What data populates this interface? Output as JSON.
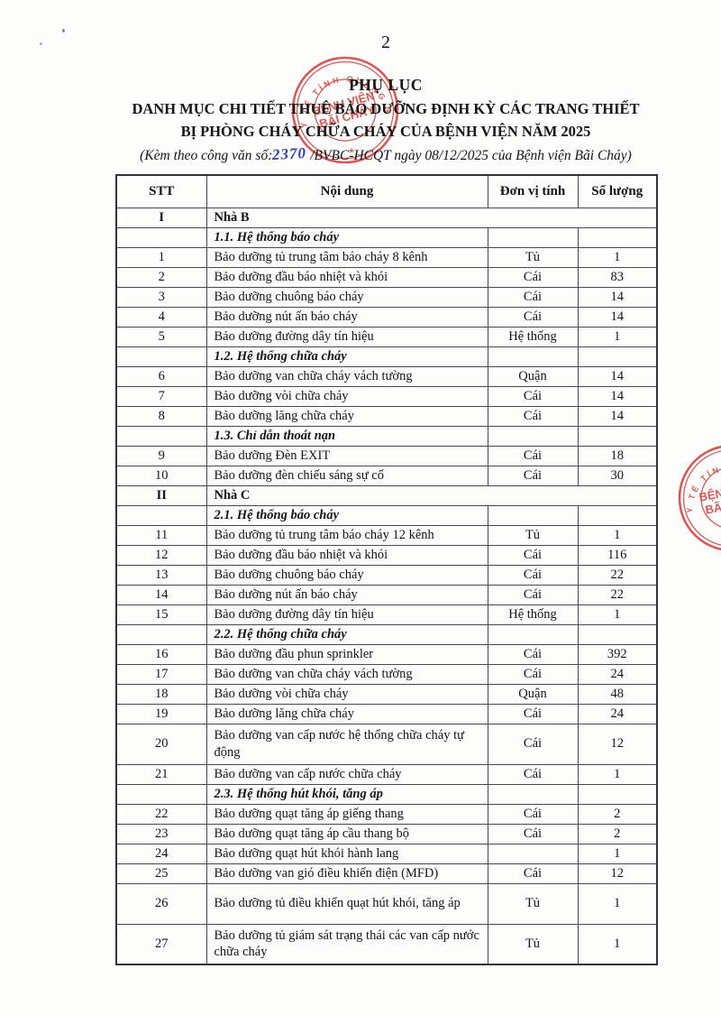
{
  "page": {
    "number": "2",
    "title_appendix": "PHỤ LỤC",
    "title_line1": "DANH MỤC CHI TIẾT THUÊ BẢO DƯỠNG ĐỊNH KỲ CÁC TRANG THIẾT",
    "title_line2": "BỊ PHÒNG CHÁY CHỮA CHÁY CỦA BỆNH VIỆN NĂM 2025",
    "subtitle_prefix": "(Kèm theo công văn số:",
    "subtitle_handwritten_number": "2370",
    "subtitle_suffix": "/BVBC-HCQT ngày 08/12/2025 của Bệnh viện Bãi Cháy)"
  },
  "stamp": {
    "ring_text": "SỞ Y TẾ TỈNH QUẢNG NINH",
    "center_line1": "BỆNH VIỆN",
    "center_line2": "BÃI CHÁY",
    "star": "★",
    "color": "#cf3737"
  },
  "colors": {
    "stamp_red": "#cf3737",
    "handwriting_blue": "#2e3eb8",
    "text": "#141414"
  },
  "table": {
    "headers": [
      "STT",
      "Nội dung",
      "Đơn vị tính",
      "Số lượng"
    ],
    "rows": [
      {
        "type": "section",
        "stt": "I",
        "content": "Nhà B"
      },
      {
        "type": "subsection",
        "content": "1.1. Hệ thống báo cháy"
      },
      {
        "type": "item",
        "stt": "1",
        "content": "Bảo dưỡng tủ trung tâm báo cháy 8 kênh",
        "unit": "Tủ",
        "qty": "1"
      },
      {
        "type": "item",
        "stt": "2",
        "content": "Bảo dưỡng đầu báo nhiệt và khói",
        "unit": "Cái",
        "qty": "83"
      },
      {
        "type": "item",
        "stt": "3",
        "content": "Bảo dưỡng chuông báo cháy",
        "unit": "Cái",
        "qty": "14"
      },
      {
        "type": "item",
        "stt": "4",
        "content": "Bảo dưỡng nút ấn báo cháy",
        "unit": "Cái",
        "qty": "14"
      },
      {
        "type": "item",
        "stt": "5",
        "content": "Bảo dưỡng đường dây tín hiệu",
        "unit": "Hệ thống",
        "qty": "1"
      },
      {
        "type": "subsection",
        "content": "1.2. Hệ thống chữa cháy"
      },
      {
        "type": "item",
        "stt": "6",
        "content": "Bảo dưỡng van chữa cháy vách tường",
        "unit": "Quận",
        "qty": "14"
      },
      {
        "type": "item",
        "stt": "7",
        "content": "Bảo dưỡng vòi chữa cháy",
        "unit": "Cái",
        "qty": "14"
      },
      {
        "type": "item",
        "stt": "8",
        "content": "Bảo dưỡng lăng chữa cháy",
        "unit": "Cái",
        "qty": "14"
      },
      {
        "type": "subsection",
        "content": "1.3. Chỉ dẫn thoát nạn"
      },
      {
        "type": "item",
        "stt": "9",
        "content": "Bảo dưỡng Đèn EXIT",
        "unit": "Cái",
        "qty": "18"
      },
      {
        "type": "item",
        "stt": "10",
        "content": "Bảo dưỡng đèn chiếu sáng sự cố",
        "unit": "Cái",
        "qty": "30"
      },
      {
        "type": "section",
        "stt": "II",
        "content": "Nhà C"
      },
      {
        "type": "subsection",
        "content": "2.1. Hệ thống báo cháy"
      },
      {
        "type": "item",
        "stt": "11",
        "content": "Bảo dưỡng tủ trung tâm báo cháy 12 kênh",
        "unit": "Tủ",
        "qty": "1"
      },
      {
        "type": "item",
        "stt": "12",
        "content": "Bảo dưỡng đầu báo nhiệt và khói",
        "unit": "Cái",
        "qty": "116"
      },
      {
        "type": "item",
        "stt": "13",
        "content": "Bảo dưỡng chuông báo cháy",
        "unit": "Cái",
        "qty": "22"
      },
      {
        "type": "item",
        "stt": "14",
        "content": "Bảo dưỡng nút ấn báo cháy",
        "unit": "Cái",
        "qty": "22"
      },
      {
        "type": "item",
        "stt": "15",
        "content": "Bảo dưỡng đường dây tín hiệu",
        "unit": "Hệ thống",
        "qty": "1"
      },
      {
        "type": "subsection",
        "content": "2.2. Hệ thống chữa cháy"
      },
      {
        "type": "item",
        "stt": "16",
        "content": "Bảo dưỡng đầu phun sprinkler",
        "unit": "Cái",
        "qty": "392"
      },
      {
        "type": "item",
        "stt": "17",
        "content": "Bảo dưỡng van chữa cháy vách tường",
        "unit": "Cái",
        "qty": "24"
      },
      {
        "type": "item",
        "stt": "18",
        "content": "Bảo dưỡng vòi chữa cháy",
        "unit": "Quận",
        "qty": "48"
      },
      {
        "type": "item",
        "stt": "19",
        "content": "Bảo dưỡng lăng chữa cháy",
        "unit": "Cái",
        "qty": "24"
      },
      {
        "type": "item",
        "stt": "20",
        "content": "Bảo dưỡng van cấp nước hệ thống chữa cháy tự động",
        "unit": "Cái",
        "qty": "12",
        "tall": true
      },
      {
        "type": "item",
        "stt": "21",
        "content": "Bảo dưỡng van cấp nước chữa cháy",
        "unit": "Cái",
        "qty": "1"
      },
      {
        "type": "subsection",
        "content": "2.3. Hệ thống hút khói, tăng áp"
      },
      {
        "type": "item",
        "stt": "22",
        "content": "Bảo dưỡng quạt tăng áp giếng thang",
        "unit": "Cái",
        "qty": "2"
      },
      {
        "type": "item",
        "stt": "23",
        "content": "Bảo dưỡng quạt tăng áp cầu thang bộ",
        "unit": "Cái",
        "qty": "2"
      },
      {
        "type": "item",
        "stt": "24",
        "content": "Bảo dưỡng quạt hút khói hành lang",
        "unit": "",
        "qty": "1"
      },
      {
        "type": "item",
        "stt": "25",
        "content": "Bảo dưỡng van gió điều khiển điện (MFD)",
        "unit": "Cái",
        "qty": "12"
      },
      {
        "type": "item",
        "stt": "26",
        "content": "Bảo dưỡng tủ điều khiển quạt hút khói, tăng áp",
        "unit": "Tủ",
        "qty": "1",
        "tall": true
      },
      {
        "type": "item",
        "stt": "27",
        "content": "Bảo dưỡng tủ giám sát trạng thái các van cấp nước chữa cháy",
        "unit": "Tủ",
        "qty": "1",
        "tall": true
      }
    ]
  }
}
